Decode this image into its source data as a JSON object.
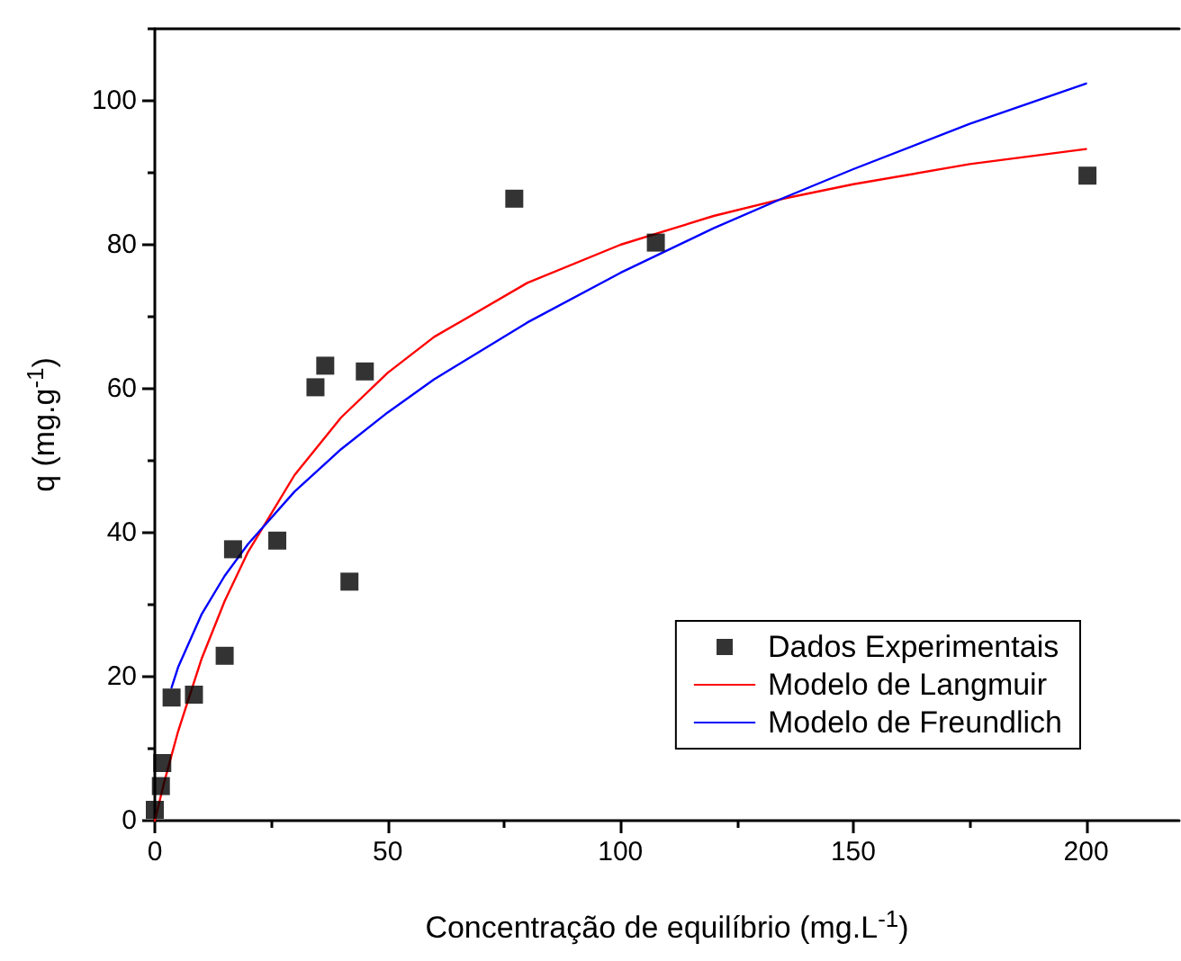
{
  "chart_data": {
    "type": "scatter",
    "xlabel": "Concentração de equilíbrio (mg.L$^{-1}$)",
    "ylabel": "q (mg.g$^{-1}$)",
    "xlim": [
      0,
      220
    ],
    "xticks": [
      0,
      50,
      100,
      150,
      200
    ],
    "ylim": [
      0,
      110
    ],
    "yticks": [
      0,
      20,
      40,
      60,
      80,
      100
    ],
    "grid": false,
    "legend": "bottom right",
    "series": [
      {
        "name": "Dados Experimentais",
        "marker": "square",
        "color": "#000000",
        "x": [
          0,
          1.3,
          1.6,
          3.6,
          8.4,
          15,
          16.8,
          26.3,
          34.5,
          36.6,
          41.8,
          45.1,
          77.2,
          107.6,
          200.3
        ],
        "values": [
          1.5,
          4.8,
          8,
          17.1,
          17.5,
          22.9,
          37.7,
          38.9,
          60.2,
          63.2,
          33.2,
          62.4,
          86.4,
          80.3,
          89.6
        ]
      },
      {
        "name": "Modelo de Langmuir",
        "type": "line",
        "marker": "none",
        "line_style": "solid",
        "color": "#ff0000",
        "x": [
          0,
          2,
          5,
          10,
          15,
          20,
          30,
          40,
          50,
          60,
          80,
          100,
          120,
          135,
          150,
          175,
          200
        ],
        "values": [
          0,
          5.3,
          12.4,
          22.4,
          30.5,
          37.3,
          48,
          56,
          62.2,
          67.2,
          74.7,
          80,
          84,
          86.4,
          88.4,
          91.2,
          93.3
        ]
      },
      {
        "name": "Modelo de Freundlich",
        "type": "line",
        "marker": "none",
        "line_style": "solid",
        "color": "#0000ff",
        "x": [
          3.6,
          5,
          10,
          15,
          20,
          30,
          40,
          50,
          60,
          80,
          100,
          120,
          135,
          150,
          175,
          200
        ],
        "values": [
          18.5,
          21.3,
          28.6,
          34,
          38.4,
          45.7,
          51.6,
          56.7,
          61.3,
          69.2,
          76.1,
          82.3,
          86.5,
          90.5,
          96.8,
          102.4
        ]
      }
    ]
  }
}
